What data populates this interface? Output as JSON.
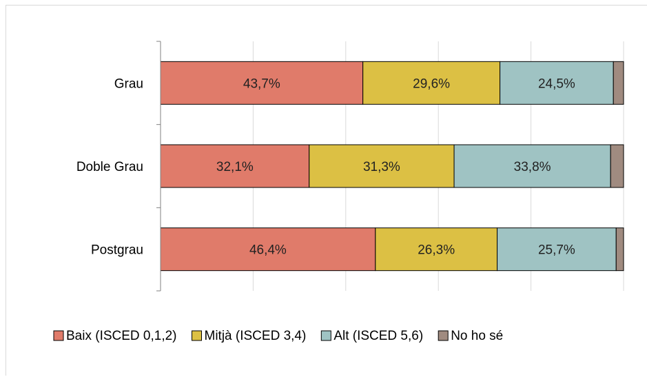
{
  "chart_data": {
    "type": "bar",
    "orientation": "horizontal",
    "stacked": true,
    "percent_stacked": true,
    "categories": [
      "Grau",
      "Doble Grau",
      "Postgrau"
    ],
    "series": [
      {
        "name": "Baix (ISCED 0,1,2)",
        "color": "#e07b6a",
        "values": [
          43.7,
          32.1,
          46.4
        ],
        "labels": [
          "43,7%",
          "32,1%",
          "46,4%"
        ]
      },
      {
        "name": "Mitjà (ISCED 3,4)",
        "color": "#dcc044",
        "values": [
          29.6,
          31.3,
          26.3
        ],
        "labels": [
          "29,6%",
          "31,3%",
          "26,3%"
        ]
      },
      {
        "name": "Alt (ISCED 5,6)",
        "color": "#9fc3c3",
        "values": [
          24.5,
          33.8,
          25.7
        ],
        "labels": [
          "24,5%",
          "33,8%",
          "25,7%"
        ]
      },
      {
        "name": "No ho sé",
        "color": "#a08b80",
        "values": [
          2.2,
          2.8,
          1.6
        ],
        "labels": [
          "",
          "",
          ""
        ]
      }
    ],
    "xlim": [
      0,
      100
    ],
    "grid": true,
    "legend_position": "bottom"
  }
}
